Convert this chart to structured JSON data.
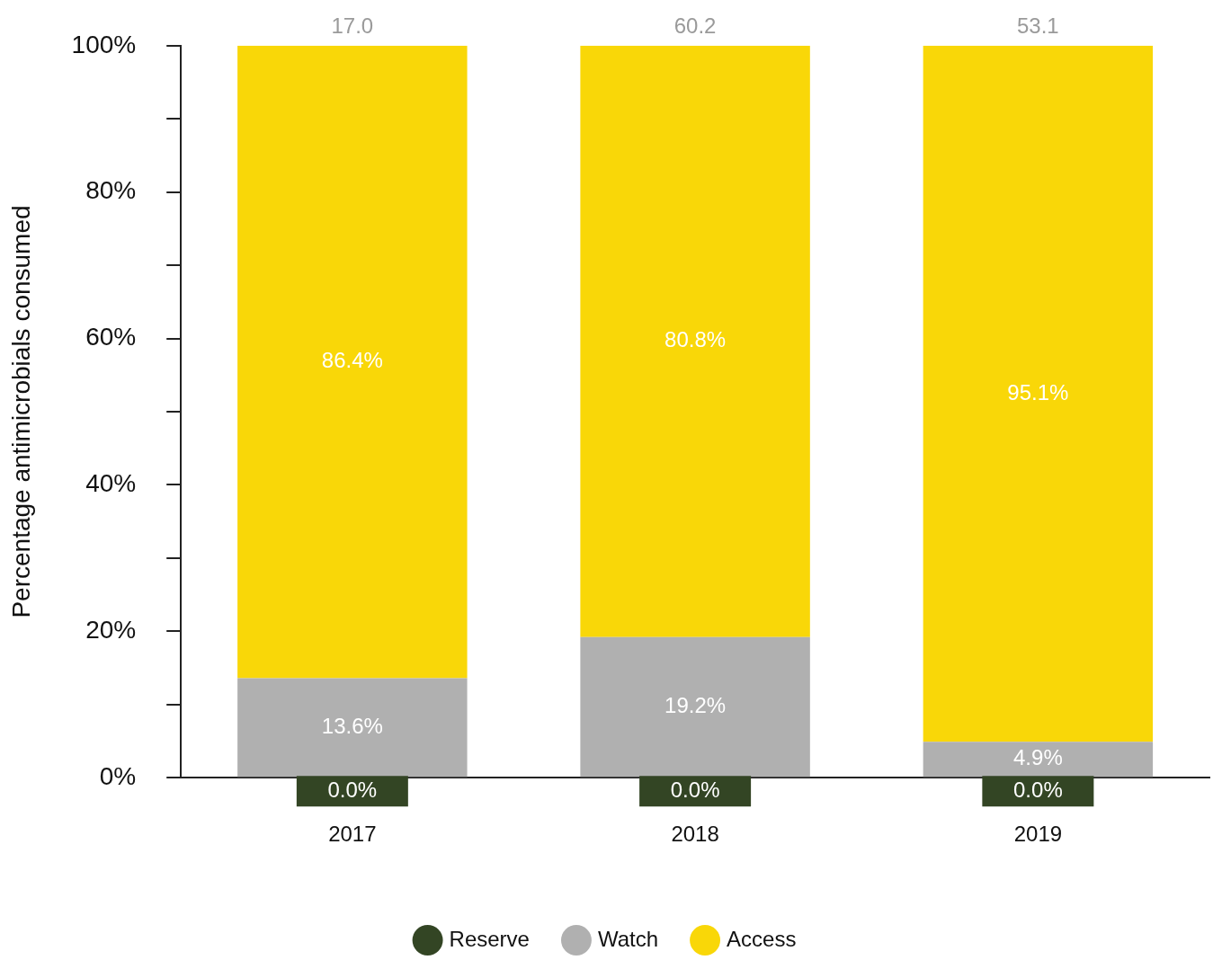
{
  "chart_data": {
    "type": "bar",
    "stacked": true,
    "ylabel": "Percentage antimicrobials consumed",
    "categories": [
      "2017",
      "2018",
      "2019"
    ],
    "series": [
      {
        "name": "Reserve",
        "color": "#334524",
        "values": [
          0.0,
          0.0,
          0.0
        ],
        "value_labels": [
          "0.0%",
          "0.0%",
          "0.0%"
        ]
      },
      {
        "name": "Watch",
        "color": "#b0b0b0",
        "values": [
          13.6,
          19.2,
          4.9
        ],
        "value_labels": [
          "13.6%",
          "19.2%",
          "4.9%"
        ]
      },
      {
        "name": "Access",
        "color": "#f9d708",
        "values": [
          86.4,
          80.8,
          95.1
        ],
        "value_labels": [
          "86.4%",
          "80.8%",
          "95.1%"
        ]
      }
    ],
    "annotations": [
      {
        "text": "17.0",
        "x": "2017",
        "y": 100
      },
      {
        "text": "60.2",
        "x": "2018",
        "y": 100
      },
      {
        "text": "53.1",
        "x": "2019",
        "y": 100
      }
    ],
    "ylim": [
      0,
      100
    ],
    "yticks": [
      {
        "value": 0,
        "label": "0%"
      },
      {
        "value": 10,
        "label": null
      },
      {
        "value": 20,
        "label": "20%"
      },
      {
        "value": 30,
        "label": null
      },
      {
        "value": 40,
        "label": "40%"
      },
      {
        "value": 50,
        "label": null
      },
      {
        "value": 60,
        "label": "60%"
      },
      {
        "value": 70,
        "label": null
      },
      {
        "value": 80,
        "label": "80%"
      },
      {
        "value": 90,
        "label": null
      },
      {
        "value": 100,
        "label": "100%"
      }
    ],
    "grid": false,
    "legend": "bottom"
  }
}
